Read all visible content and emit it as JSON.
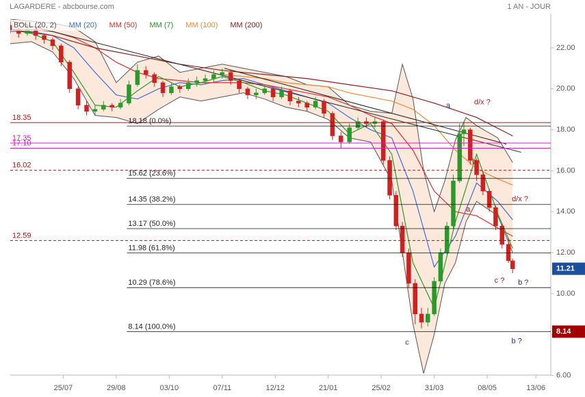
{
  "chart_data": {
    "type": "candlestick",
    "title": "LAGARDERE - abcbourse.com",
    "subtitle": "1 AN - JOUR",
    "xlim": [
      0,
      255
    ],
    "xticks": [
      {
        "value": 25,
        "label": "25/07"
      },
      {
        "value": 50,
        "label": "29/08"
      },
      {
        "value": 75,
        "label": "03/10"
      },
      {
        "value": 100,
        "label": "07/11"
      },
      {
        "value": 125,
        "label": "12/12"
      },
      {
        "value": 150,
        "label": "21/01"
      },
      {
        "value": 175,
        "label": "25/02"
      },
      {
        "value": 200,
        "label": "31/03"
      },
      {
        "value": 225,
        "label": "08/05"
      },
      {
        "value": 248,
        "label": "13/06"
      }
    ],
    "ylim": [
      5.95,
      23.4
    ],
    "yticks": [
      {
        "value": 6,
        "label": "6.00"
      },
      {
        "value": 8,
        "label": "8.00"
      },
      {
        "value": 10,
        "label": "10.00"
      },
      {
        "value": 12,
        "label": "12.00"
      },
      {
        "value": 14,
        "label": "14.00"
      },
      {
        "value": 16,
        "label": "16.00"
      },
      {
        "value": 18,
        "label": "18.00"
      },
      {
        "value": 20,
        "label": "20.00"
      },
      {
        "value": 22,
        "label": "22.00"
      }
    ],
    "up_color": "#2a9a2a",
    "down_color": "#d02020",
    "candles": [
      {
        "x": 0,
        "o": 23.1,
        "h": 23.3,
        "l": 22.7,
        "c": 22.9
      },
      {
        "x": 4,
        "o": 22.9,
        "h": 23.0,
        "l": 22.5,
        "c": 22.7
      },
      {
        "x": 8,
        "o": 22.7,
        "h": 23.1,
        "l": 22.6,
        "c": 22.9
      },
      {
        "x": 12,
        "o": 22.9,
        "h": 23.0,
        "l": 22.4,
        "c": 22.6
      },
      {
        "x": 16,
        "o": 22.6,
        "h": 22.7,
        "l": 22.2,
        "c": 22.4
      },
      {
        "x": 20,
        "o": 22.4,
        "h": 22.5,
        "l": 21.9,
        "c": 22.1
      },
      {
        "x": 24,
        "o": 22.1,
        "h": 22.2,
        "l": 21.1,
        "c": 21.3
      },
      {
        "x": 28,
        "o": 21.3,
        "h": 21.4,
        "l": 19.8,
        "c": 20.0
      },
      {
        "x": 32,
        "o": 20.0,
        "h": 20.1,
        "l": 19.0,
        "c": 19.2
      },
      {
        "x": 36,
        "o": 19.2,
        "h": 19.4,
        "l": 18.7,
        "c": 18.9
      },
      {
        "x": 40,
        "o": 18.9,
        "h": 19.2,
        "l": 18.7,
        "c": 19.0
      },
      {
        "x": 44,
        "o": 19.0,
        "h": 19.4,
        "l": 18.9,
        "c": 19.2
      },
      {
        "x": 48,
        "o": 19.2,
        "h": 19.3,
        "l": 18.9,
        "c": 19.1
      },
      {
        "x": 52,
        "o": 19.1,
        "h": 19.5,
        "l": 19.0,
        "c": 19.3
      },
      {
        "x": 56,
        "o": 19.3,
        "h": 20.4,
        "l": 19.2,
        "c": 20.2
      },
      {
        "x": 60,
        "o": 20.2,
        "h": 21.2,
        "l": 20.1,
        "c": 20.9
      },
      {
        "x": 64,
        "o": 20.9,
        "h": 21.1,
        "l": 20.5,
        "c": 20.7
      },
      {
        "x": 68,
        "o": 20.7,
        "h": 20.8,
        "l": 20.1,
        "c": 20.3
      },
      {
        "x": 72,
        "o": 20.3,
        "h": 20.4,
        "l": 19.6,
        "c": 19.8
      },
      {
        "x": 76,
        "o": 19.8,
        "h": 20.3,
        "l": 19.7,
        "c": 20.1
      },
      {
        "x": 80,
        "o": 20.1,
        "h": 20.2,
        "l": 19.8,
        "c": 20.0
      },
      {
        "x": 84,
        "o": 20.0,
        "h": 20.5,
        "l": 19.9,
        "c": 20.3
      },
      {
        "x": 88,
        "o": 20.3,
        "h": 20.6,
        "l": 20.1,
        "c": 20.4
      },
      {
        "x": 92,
        "o": 20.4,
        "h": 20.7,
        "l": 20.2,
        "c": 20.5
      },
      {
        "x": 96,
        "o": 20.5,
        "h": 20.9,
        "l": 20.3,
        "c": 20.7
      },
      {
        "x": 100,
        "o": 20.7,
        "h": 21.0,
        "l": 20.5,
        "c": 20.8
      },
      {
        "x": 104,
        "o": 20.8,
        "h": 20.9,
        "l": 20.2,
        "c": 20.4
      },
      {
        "x": 108,
        "o": 20.4,
        "h": 20.5,
        "l": 19.8,
        "c": 20.0
      },
      {
        "x": 112,
        "o": 20.0,
        "h": 20.1,
        "l": 19.5,
        "c": 19.7
      },
      {
        "x": 116,
        "o": 19.7,
        "h": 20.0,
        "l": 19.5,
        "c": 19.8
      },
      {
        "x": 120,
        "o": 19.8,
        "h": 20.2,
        "l": 19.7,
        "c": 20.0
      },
      {
        "x": 124,
        "o": 20.0,
        "h": 20.1,
        "l": 19.4,
        "c": 19.6
      },
      {
        "x": 128,
        "o": 19.6,
        "h": 20.1,
        "l": 19.5,
        "c": 19.9
      },
      {
        "x": 132,
        "o": 19.9,
        "h": 20.0,
        "l": 19.2,
        "c": 19.4
      },
      {
        "x": 136,
        "o": 19.4,
        "h": 19.6,
        "l": 19.1,
        "c": 19.3
      },
      {
        "x": 140,
        "o": 19.3,
        "h": 19.4,
        "l": 18.9,
        "c": 19.1
      },
      {
        "x": 144,
        "o": 19.1,
        "h": 19.6,
        "l": 19.0,
        "c": 19.4
      },
      {
        "x": 148,
        "o": 19.4,
        "h": 19.5,
        "l": 18.6,
        "c": 18.8
      },
      {
        "x": 152,
        "o": 18.8,
        "h": 18.9,
        "l": 17.5,
        "c": 17.7
      },
      {
        "x": 156,
        "o": 17.7,
        "h": 17.9,
        "l": 17.1,
        "c": 17.4
      },
      {
        "x": 160,
        "o": 17.4,
        "h": 18.3,
        "l": 17.3,
        "c": 18.1
      },
      {
        "x": 164,
        "o": 18.1,
        "h": 18.6,
        "l": 18.0,
        "c": 18.4
      },
      {
        "x": 168,
        "o": 18.4,
        "h": 18.6,
        "l": 18.1,
        "c": 18.3
      },
      {
        "x": 172,
        "o": 18.3,
        "h": 18.6,
        "l": 18.1,
        "c": 18.4
      },
      {
        "x": 176,
        "o": 18.4,
        "h": 18.5,
        "l": 16.3,
        "c": 16.5
      },
      {
        "x": 179,
        "o": 16.5,
        "h": 16.7,
        "l": 14.6,
        "c": 14.8
      },
      {
        "x": 182,
        "o": 14.8,
        "h": 15.0,
        "l": 13.1,
        "c": 13.3
      },
      {
        "x": 185,
        "o": 13.3,
        "h": 13.5,
        "l": 11.8,
        "c": 12.0
      },
      {
        "x": 188,
        "o": 12.0,
        "h": 12.2,
        "l": 10.3,
        "c": 10.5
      },
      {
        "x": 191,
        "o": 10.5,
        "h": 10.7,
        "l": 8.5,
        "c": 9.0
      },
      {
        "x": 194,
        "o": 9.0,
        "h": 9.3,
        "l": 8.3,
        "c": 8.6
      },
      {
        "x": 197,
        "o": 8.6,
        "h": 9.3,
        "l": 8.4,
        "c": 9.0
      },
      {
        "x": 200,
        "o": 9.0,
        "h": 10.8,
        "l": 8.9,
        "c": 10.6
      },
      {
        "x": 203,
        "o": 10.6,
        "h": 12.2,
        "l": 10.5,
        "c": 12.0
      },
      {
        "x": 206,
        "o": 12.0,
        "h": 13.5,
        "l": 11.9,
        "c": 13.3
      },
      {
        "x": 209,
        "o": 13.3,
        "h": 15.8,
        "l": 13.2,
        "c": 15.5
      },
      {
        "x": 212,
        "o": 15.5,
        "h": 18.3,
        "l": 15.4,
        "c": 17.8
      },
      {
        "x": 214,
        "o": 17.8,
        "h": 18.4,
        "l": 17.2,
        "c": 18.0
      },
      {
        "x": 217,
        "o": 18.0,
        "h": 18.1,
        "l": 16.3,
        "c": 16.5
      },
      {
        "x": 220,
        "o": 16.5,
        "h": 16.6,
        "l": 15.5,
        "c": 15.8
      },
      {
        "x": 223,
        "o": 15.8,
        "h": 16.0,
        "l": 14.8,
        "c": 15.0
      },
      {
        "x": 226,
        "o": 15.0,
        "h": 15.1,
        "l": 14.0,
        "c": 14.2
      },
      {
        "x": 229,
        "o": 14.2,
        "h": 14.3,
        "l": 13.1,
        "c": 13.3
      },
      {
        "x": 232,
        "o": 13.3,
        "h": 13.4,
        "l": 12.2,
        "c": 12.4
      },
      {
        "x": 235,
        "o": 12.4,
        "h": 12.7,
        "l": 11.5,
        "c": 11.6
      },
      {
        "x": 237,
        "o": 11.6,
        "h": 11.7,
        "l": 11.0,
        "c": 11.21
      }
    ],
    "bollinger": {
      "name": "BOLL (20, 2)",
      "color": "#555555",
      "fill": "#fbd9c4",
      "x": [
        0,
        10,
        20,
        30,
        40,
        50,
        60,
        70,
        80,
        90,
        100,
        110,
        120,
        130,
        140,
        150,
        160,
        170,
        180,
        185,
        190,
        195,
        200,
        205,
        210,
        215,
        220,
        230,
        237
      ],
      "upper": [
        23.4,
        23.3,
        23.2,
        23.0,
        22.3,
        20.3,
        21.3,
        21.6,
        20.8,
        21.0,
        21.2,
        21.0,
        20.8,
        20.6,
        20.2,
        20.1,
        19.2,
        18.9,
        18.8,
        21.2,
        19.5,
        16.0,
        14.0,
        15.5,
        17.5,
        18.6,
        18.2,
        17.6,
        16.4
      ],
      "lower": [
        22.2,
        22.3,
        21.8,
        20.5,
        18.7,
        18.6,
        18.3,
        19.0,
        19.6,
        19.4,
        19.6,
        19.8,
        19.5,
        19.1,
        18.9,
        18.5,
        17.6,
        17.4,
        15.5,
        12.0,
        8.5,
        6.1,
        8.0,
        10.5,
        11.5,
        13.5,
        14.5,
        13.8,
        12.0
      ]
    },
    "series": [
      {
        "name": "MM (20)",
        "color": "#3a6fd8",
        "x": [
          0,
          10,
          20,
          30,
          40,
          50,
          60,
          70,
          80,
          90,
          100,
          110,
          120,
          130,
          140,
          150,
          160,
          170,
          180,
          190,
          200,
          210,
          220,
          230,
          237
        ],
        "values": [
          22.8,
          22.8,
          22.6,
          22.0,
          20.8,
          19.7,
          19.5,
          20.0,
          20.3,
          20.2,
          20.4,
          20.5,
          20.2,
          19.9,
          19.6,
          19.3,
          18.6,
          18.0,
          17.6,
          15.0,
          11.3,
          12.8,
          15.4,
          14.5,
          13.6
        ]
      },
      {
        "name": "MM (50)",
        "color": "#e03030",
        "x": [
          0,
          10,
          20,
          30,
          40,
          50,
          60,
          70,
          80,
          90,
          100,
          110,
          120,
          130,
          140,
          150,
          160,
          170,
          180,
          190,
          200,
          210,
          220,
          230,
          237
        ],
        "values": [
          22.9,
          22.9,
          22.8,
          22.5,
          22.0,
          21.3,
          20.8,
          20.5,
          20.4,
          20.3,
          20.3,
          20.3,
          20.2,
          20.0,
          19.8,
          19.6,
          19.2,
          18.7,
          18.3,
          17.0,
          15.0,
          14.0,
          13.8,
          13.2,
          12.8
        ]
      },
      {
        "name": "MM (7)",
        "color": "#2a9a2a",
        "x": [
          0,
          10,
          20,
          30,
          40,
          50,
          60,
          70,
          80,
          90,
          100,
          110,
          120,
          130,
          140,
          150,
          160,
          170,
          180,
          190,
          200,
          210,
          220,
          230,
          237
        ],
        "values": [
          22.9,
          22.7,
          22.3,
          20.8,
          19.2,
          19.1,
          19.9,
          20.6,
          20.1,
          20.3,
          20.6,
          20.3,
          19.9,
          19.7,
          19.3,
          18.9,
          17.8,
          18.3,
          16.8,
          11.5,
          9.3,
          13.5,
          16.8,
          13.9,
          12.2
        ]
      },
      {
        "name": "MM (100)",
        "color": "#f08a30",
        "x": [
          100,
          110,
          120,
          130,
          140,
          150,
          160,
          170,
          180,
          190,
          200,
          210,
          220,
          230,
          237
        ],
        "values": [
          20.7,
          20.6,
          20.5,
          20.3,
          20.2,
          20.1,
          19.8,
          19.6,
          19.4,
          19.0,
          18.2,
          17.0,
          16.1,
          15.6,
          15.3
        ]
      },
      {
        "name": "MM (200)",
        "color": "#8b2020",
        "x": [
          0,
          20,
          40,
          60,
          80,
          100,
          120,
          140,
          160,
          180,
          200,
          220,
          237
        ],
        "values": [
          22.9,
          22.6,
          22.0,
          21.6,
          21.2,
          20.9,
          20.7,
          20.5,
          20.2,
          19.9,
          19.3,
          18.6,
          17.7
        ]
      }
    ],
    "trendlines": [
      {
        "color": "#222222",
        "x": [
          1,
          241
        ],
        "values": [
          23.3,
          16.9
        ]
      },
      {
        "color": "#222222",
        "x": [
          101,
          234
        ],
        "values": [
          21.0,
          17.3
        ]
      }
    ],
    "levels": [
      {
        "value": 18.35,
        "label": "18.35",
        "color": "#a01818",
        "dashed": false
      },
      {
        "value": 17.35,
        "label": "17.35",
        "color": "#d020c0",
        "dashed": false
      },
      {
        "value": 17.1,
        "label": "17.10",
        "color": "#d020c0",
        "dashed": false
      },
      {
        "value": 16.02,
        "label": "16.02",
        "color": "#a01818",
        "dashed": true
      },
      {
        "value": 12.59,
        "label": "12.59",
        "color": "#a01818",
        "dashed": true
      }
    ],
    "fibonacci": {
      "start_x": 55,
      "color": "#111111",
      "levels": [
        {
          "value": 18.18,
          "label": "18.18  (0.0%)"
        },
        {
          "value": 15.62,
          "label": "15.62  (23.6%)"
        },
        {
          "value": 14.35,
          "label": "14.35  (38.2%)"
        },
        {
          "value": 13.17,
          "label": "13.17  (50.0%)"
        },
        {
          "value": 11.98,
          "label": "11.98  (61.8%)"
        },
        {
          "value": 10.29,
          "label": "10.29  (78.6%)"
        },
        {
          "value": 8.14,
          "label": "8.14  (100.0%)"
        }
      ]
    },
    "annotations": [
      {
        "text": "a",
        "x": 206.6,
        "y": 19.17,
        "color": "#2a2a90"
      },
      {
        "text": "d/x ?",
        "x": 222.7,
        "y": 19.33,
        "color": "#b01818"
      },
      {
        "text": "b",
        "x": 218.9,
        "y": 16.43,
        "color": "#b01818"
      },
      {
        "text": "a",
        "x": 216,
        "y": 14.1,
        "color": "#b01818"
      },
      {
        "text": "d/x ?",
        "x": 240.5,
        "y": 14.6,
        "color": "#b01818"
      },
      {
        "text": "c ?",
        "x": 230.8,
        "y": 10.63,
        "color": "#b01818"
      },
      {
        "text": "b ?",
        "x": 242,
        "y": 10.53,
        "color": "#2a2a90"
      },
      {
        "text": "c",
        "x": 187.2,
        "y": 7.6,
        "color": "#b01818"
      },
      {
        "text": "b ?",
        "x": 238.9,
        "y": 7.67,
        "color": "#2a2a90"
      }
    ],
    "price_badges": [
      {
        "value": 11.21,
        "color": "#1f4e9c"
      },
      {
        "value": 8.14,
        "color": "#a00000"
      }
    ]
  }
}
